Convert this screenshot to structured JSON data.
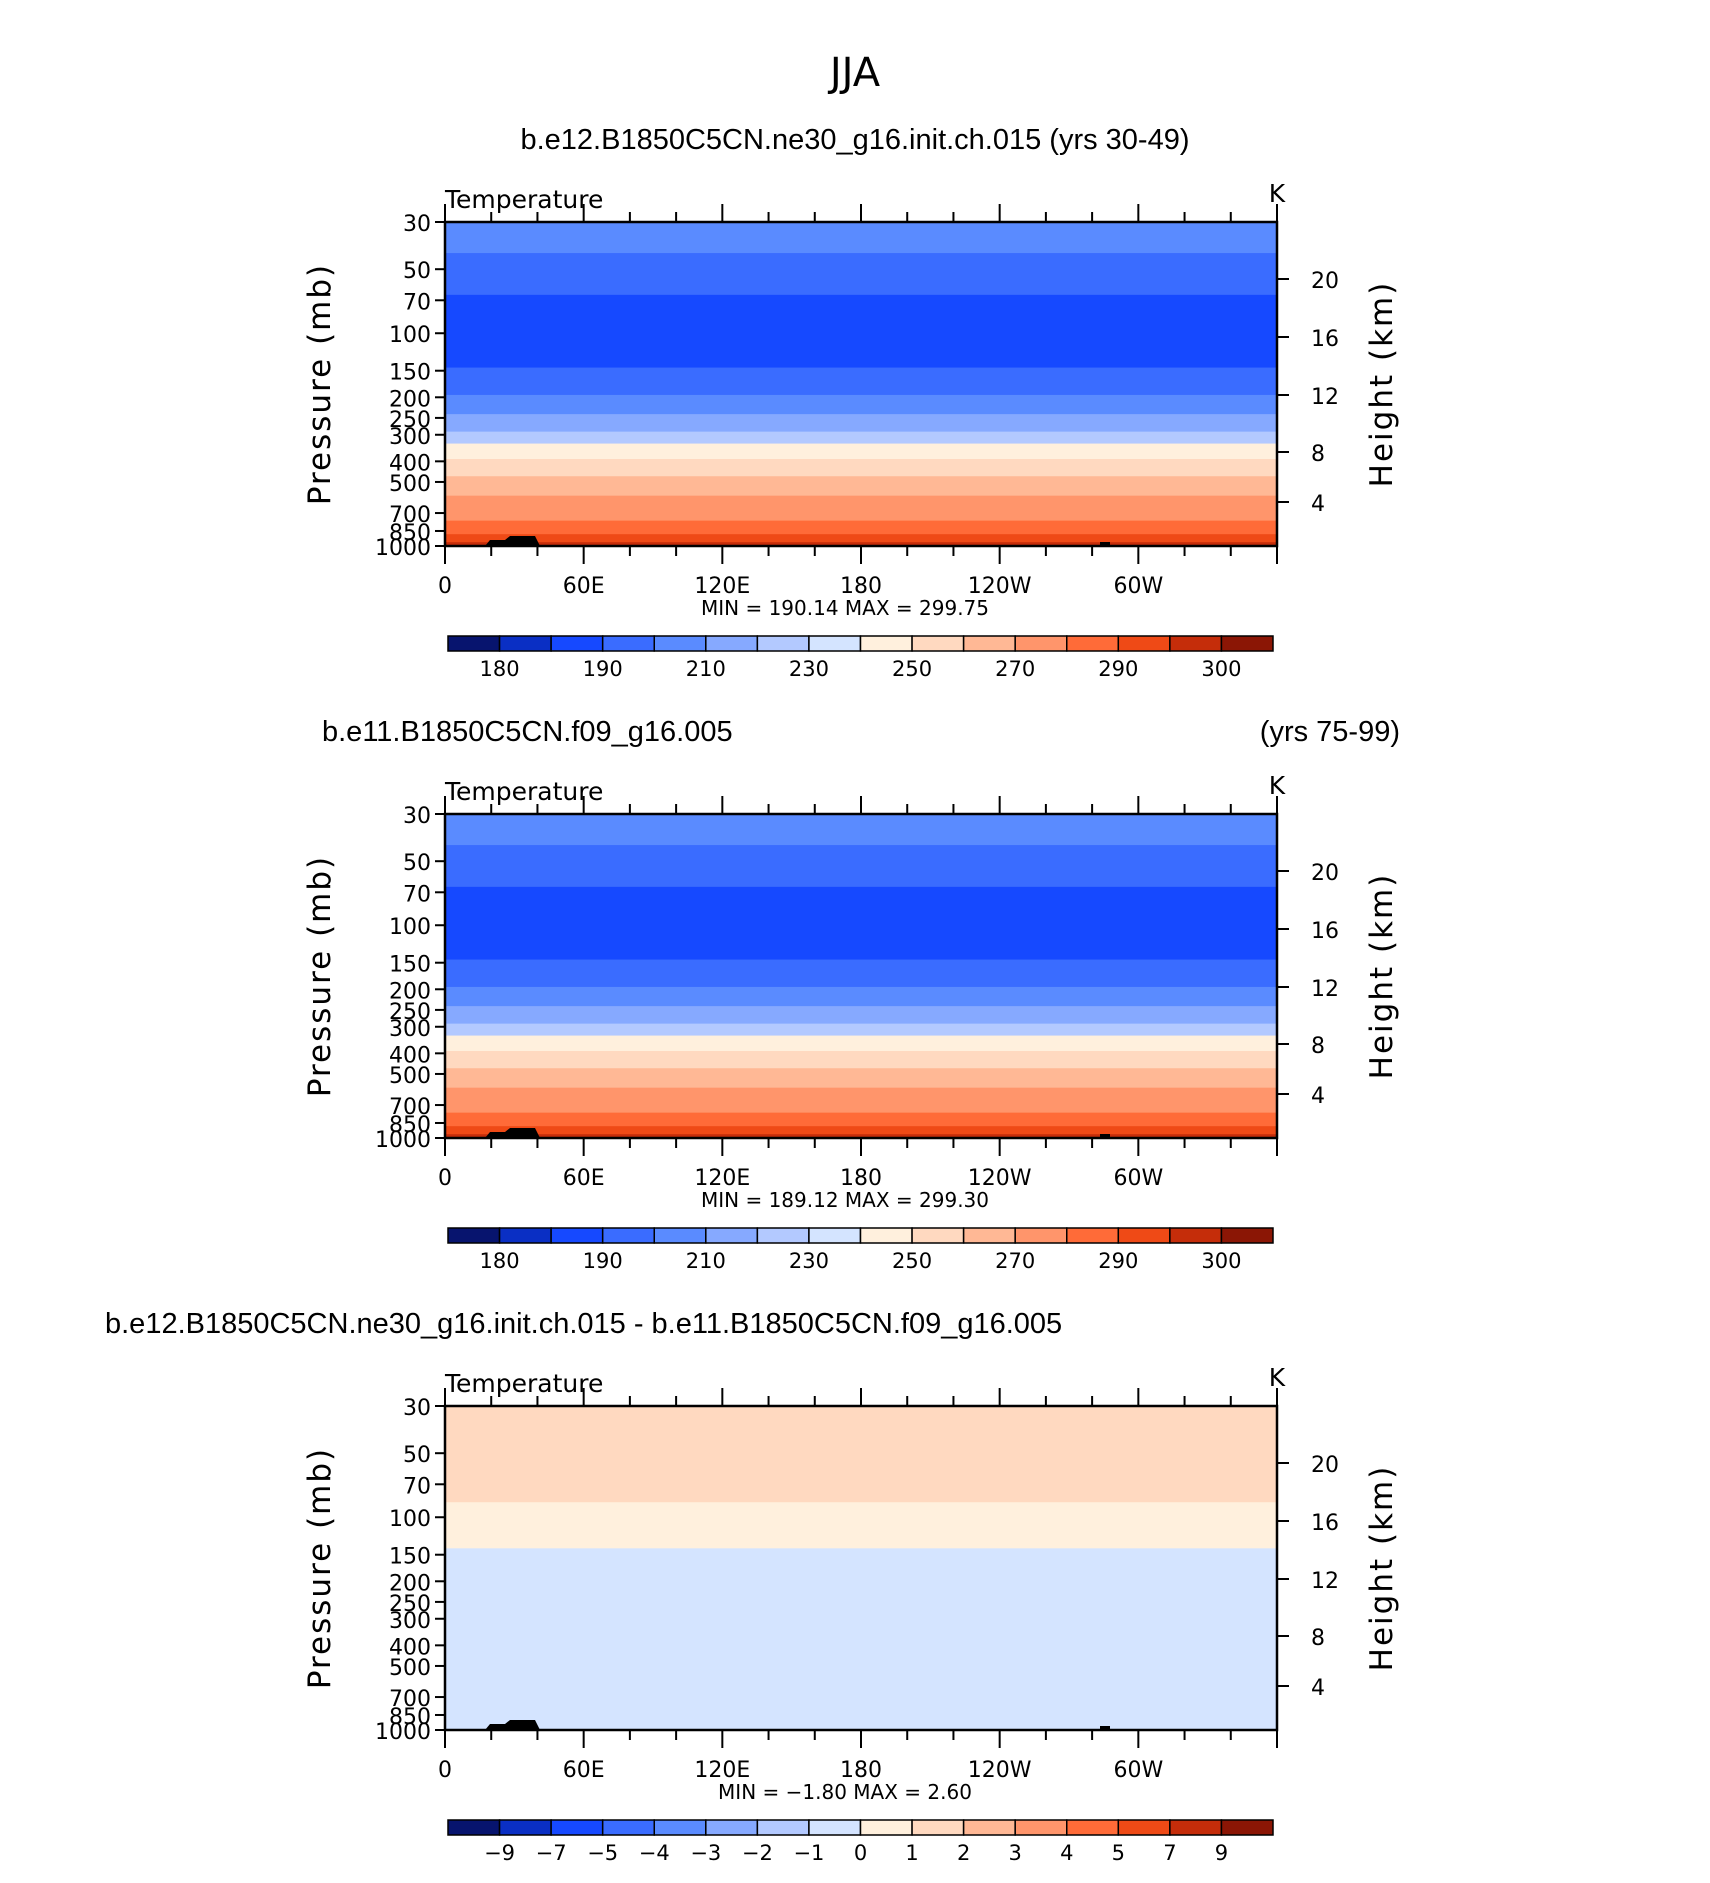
{
  "page": {
    "title": "JJA"
  },
  "colors": {
    "temp_levels": [
      "#07146e",
      "#0a2fc4",
      "#1649ff",
      "#3a6cff",
      "#5a8bff",
      "#86a9ff",
      "#b3c9ff",
      "#d4e4ff",
      "#fff0dd",
      "#ffd9c0",
      "#ffb895",
      "#ff956b",
      "#ff6b38",
      "#ef4a16",
      "#c52d0a",
      "#8b1605"
    ],
    "diff_levels": [
      "#07146e",
      "#0a2fc4",
      "#1649ff",
      "#3a6cff",
      "#5a8bff",
      "#86a9ff",
      "#b3c9ff",
      "#d4e4ff",
      "#fff0dd",
      "#ffd9c0",
      "#ffb895",
      "#ff956b",
      "#ff6b38",
      "#ef4a16",
      "#c52d0a",
      "#8b1605"
    ],
    "topography": "#000000"
  },
  "chart_data": [
    {
      "type": "heatmap",
      "title": "b.e12.B1850C5CN.ne30_g16.init.ch.015 (yrs 30-49)",
      "title_right": "",
      "variable": "Temperature",
      "units": "K",
      "ylabel": "Pressure (mb)",
      "ylabel_right": "Height (km)",
      "yscale": "log",
      "ylim": [
        1000,
        30
      ],
      "yticks": [
        "30",
        "50",
        "70",
        "100",
        "150",
        "200",
        "250",
        "300",
        "400",
        "500",
        "700",
        "850",
        "1000"
      ],
      "yticks_right": [
        "20",
        "16",
        "12",
        "8",
        "4"
      ],
      "xlim": [
        0,
        360
      ],
      "xticks": [
        "0",
        "60E",
        "120E",
        "180",
        "120W",
        "60W"
      ],
      "stats": "MIN = 190.14 MAX = 299.75",
      "min": 190.14,
      "max": 299.75,
      "colorbar_labels": [
        "180",
        "190",
        "210",
        "230",
        "250",
        "270",
        "290",
        "300"
      ],
      "bands": [
        {
          "p_top": 30,
          "p_bottom": 42,
          "level": 4
        },
        {
          "p_top": 42,
          "p_bottom": 66,
          "level": 3
        },
        {
          "p_top": 66,
          "p_bottom": 145,
          "level": 2
        },
        {
          "p_top": 145,
          "p_bottom": 195,
          "level": 3
        },
        {
          "p_top": 195,
          "p_bottom": 240,
          "level": 4
        },
        {
          "p_top": 240,
          "p_bottom": 290,
          "level": 5
        },
        {
          "p_top": 290,
          "p_bottom": 330,
          "level": 6
        },
        {
          "p_top": 330,
          "p_bottom": 390,
          "level": 8
        },
        {
          "p_top": 390,
          "p_bottom": 470,
          "level": 9
        },
        {
          "p_top": 470,
          "p_bottom": 580,
          "level": 10
        },
        {
          "p_top": 580,
          "p_bottom": 760,
          "level": 11
        },
        {
          "p_top": 760,
          "p_bottom": 880,
          "level": 12
        },
        {
          "p_top": 880,
          "p_bottom": 960,
          "level": 13
        },
        {
          "p_top": 960,
          "p_bottom": 1000,
          "level": 14
        }
      ]
    },
    {
      "type": "heatmap",
      "title": "b.e11.B1850C5CN.f09_g16.005",
      "title_right": "(yrs 75-99)",
      "variable": "Temperature",
      "units": "K",
      "ylabel": "Pressure (mb)",
      "ylabel_right": "Height (km)",
      "yscale": "log",
      "ylim": [
        1000,
        30
      ],
      "yticks": [
        "30",
        "50",
        "70",
        "100",
        "150",
        "200",
        "250",
        "300",
        "400",
        "500",
        "700",
        "850",
        "1000"
      ],
      "yticks_right": [
        "20",
        "16",
        "12",
        "8",
        "4"
      ],
      "xlim": [
        0,
        360
      ],
      "xticks": [
        "0",
        "60E",
        "120E",
        "180",
        "120W",
        "60W"
      ],
      "stats": "MIN = 189.12 MAX = 299.30",
      "min": 189.12,
      "max": 299.3,
      "colorbar_labels": [
        "180",
        "190",
        "210",
        "230",
        "250",
        "270",
        "290",
        "300"
      ],
      "bands": [
        {
          "p_top": 30,
          "p_bottom": 42,
          "level": 4
        },
        {
          "p_top": 42,
          "p_bottom": 66,
          "level": 3
        },
        {
          "p_top": 66,
          "p_bottom": 145,
          "level": 2
        },
        {
          "p_top": 145,
          "p_bottom": 195,
          "level": 3
        },
        {
          "p_top": 195,
          "p_bottom": 240,
          "level": 4
        },
        {
          "p_top": 240,
          "p_bottom": 290,
          "level": 5
        },
        {
          "p_top": 290,
          "p_bottom": 330,
          "level": 6
        },
        {
          "p_top": 330,
          "p_bottom": 390,
          "level": 8
        },
        {
          "p_top": 390,
          "p_bottom": 470,
          "level": 9
        },
        {
          "p_top": 470,
          "p_bottom": 580,
          "level": 10
        },
        {
          "p_top": 580,
          "p_bottom": 760,
          "level": 11
        },
        {
          "p_top": 760,
          "p_bottom": 880,
          "level": 12
        },
        {
          "p_top": 880,
          "p_bottom": 960,
          "level": 13
        },
        {
          "p_top": 960,
          "p_bottom": 1000,
          "level": 14
        }
      ]
    },
    {
      "type": "heatmap",
      "title": "b.e12.B1850C5CN.ne30_g16.init.ch.015 - b.e11.B1850C5CN.f09_g16.005",
      "title_right": "",
      "variable": "Temperature",
      "units": "K",
      "ylabel": "Pressure (mb)",
      "ylabel_right": "Height (km)",
      "yscale": "log",
      "ylim": [
        1000,
        30
      ],
      "yticks": [
        "30",
        "50",
        "70",
        "100",
        "150",
        "200",
        "250",
        "300",
        "400",
        "500",
        "700",
        "850",
        "1000"
      ],
      "yticks_right": [
        "20",
        "16",
        "12",
        "8",
        "4"
      ],
      "xlim": [
        0,
        360
      ],
      "xticks": [
        "0",
        "60E",
        "120E",
        "180",
        "120W",
        "60W"
      ],
      "stats": "MIN = −1.80 MAX = 2.60",
      "min": -1.8,
      "max": 2.6,
      "colorbar_labels": [
        "−9",
        "−7",
        "−5",
        "−4",
        "−3",
        "−2",
        "−1",
        "0",
        "1",
        "2",
        "3",
        "4",
        "5",
        "7",
        "9"
      ],
      "bands": [
        {
          "p_top": 30,
          "p_bottom": 85,
          "level": 9
        },
        {
          "p_top": 85,
          "p_bottom": 140,
          "level": 8
        },
        {
          "p_top": 140,
          "p_bottom": 1000,
          "level": 7
        }
      ]
    }
  ]
}
